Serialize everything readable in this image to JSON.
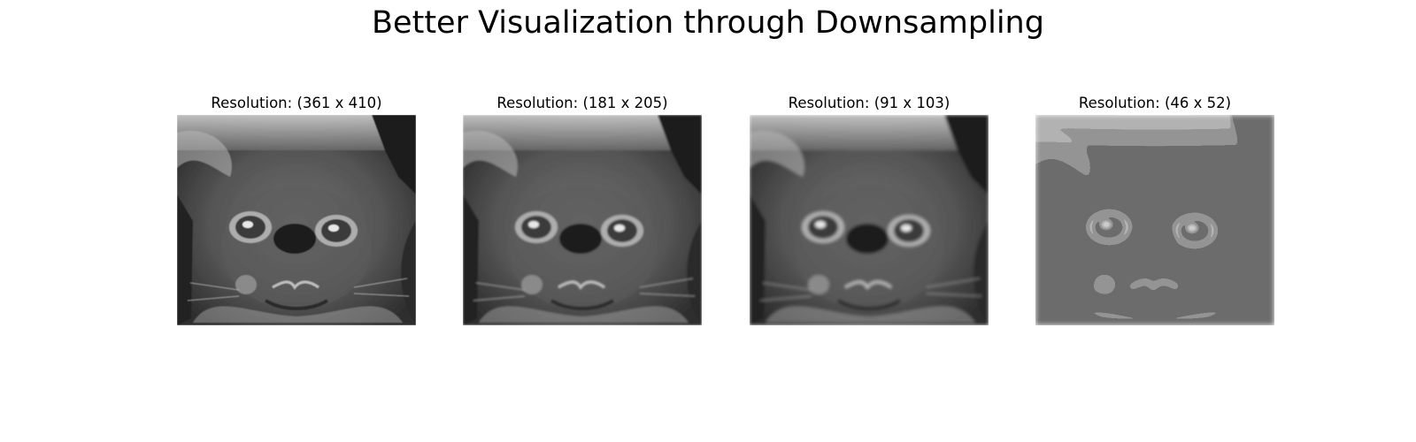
{
  "figure": {
    "title": "Better Visualization through Downsampling"
  },
  "panels": [
    {
      "title": "Resolution: (361 x 410)",
      "blur": 0.5,
      "pixel": 0
    },
    {
      "title": "Resolution: (181 x 205)",
      "blur": 1.0,
      "pixel": 0
    },
    {
      "title": "Resolution: (91 x 103)",
      "blur": 1.8,
      "pixel": 0
    },
    {
      "title": "Resolution: (46 x 52)",
      "blur": 0,
      "pixel": 1
    }
  ],
  "colors": {
    "background": "#ffffff",
    "text": "#000000"
  }
}
